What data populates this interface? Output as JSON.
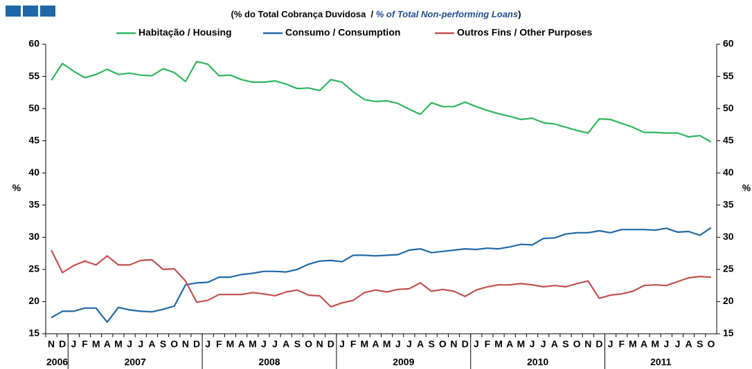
{
  "chart_data": {
    "type": "line",
    "subtitle": [
      "(% do Total Cobrança Duvidosa  / ",
      "% of Total Non-performing Loans",
      ")"
    ],
    "ylabel": "%",
    "y2label": "%",
    "categories": [
      "N",
      "D",
      "J",
      "F",
      "M",
      "A",
      "M",
      "J",
      "J",
      "A",
      "S",
      "O",
      "N",
      "D",
      "J",
      "F",
      "M",
      "A",
      "M",
      "J",
      "J",
      "A",
      "S",
      "O",
      "N",
      "D",
      "J",
      "F",
      "M",
      "A",
      "M",
      "J",
      "J",
      "A",
      "S",
      "O",
      "N",
      "D",
      "J",
      "F",
      "M",
      "A",
      "M",
      "J",
      "J",
      "A",
      "S",
      "O",
      "N",
      "D",
      "J",
      "F",
      "M",
      "A",
      "M",
      "J",
      "J",
      "A",
      "S",
      "O"
    ],
    "years": [
      "2006",
      "2007",
      "2008",
      "2009",
      "2010",
      "2011"
    ],
    "series": [
      {
        "name": "Habitação / Housing",
        "color": "#2db55d",
        "values": [
          54.4,
          57.0,
          55.8,
          54.8,
          55.3,
          56.1,
          55.3,
          55.5,
          55.2,
          55.1,
          56.2,
          55.6,
          54.2,
          57.3,
          56.9,
          55.1,
          55.2,
          54.5,
          54.1,
          54.1,
          54.3,
          53.8,
          53.1,
          53.2,
          52.8,
          54.5,
          54.1,
          52.6,
          51.4,
          51.1,
          51.2,
          50.8,
          49.9,
          49.1,
          50.9,
          50.3,
          50.3,
          51.0,
          50.3,
          49.7,
          49.2,
          48.8,
          48.3,
          48.5,
          47.8,
          47.6,
          47.1,
          46.6,
          46.2,
          48.4,
          48.3,
          47.7,
          47.1,
          46.3,
          46.3,
          46.2,
          46.2,
          45.6,
          45.8,
          44.8
        ]
      },
      {
        "name": "Consumo / Consumption",
        "color": "#1f67a6",
        "values": [
          17.5,
          18.5,
          18.5,
          19.0,
          19.0,
          16.8,
          19.1,
          18.7,
          18.5,
          18.4,
          18.8,
          19.3,
          22.6,
          22.9,
          23.0,
          23.8,
          23.8,
          24.2,
          24.4,
          24.7,
          24.7,
          24.6,
          25.0,
          25.8,
          26.3,
          26.4,
          26.2,
          27.2,
          27.2,
          27.1,
          27.2,
          27.3,
          28.0,
          28.2,
          27.6,
          27.8,
          28.0,
          28.2,
          28.1,
          28.3,
          28.2,
          28.5,
          28.9,
          28.8,
          29.8,
          29.9,
          30.5,
          30.7,
          30.7,
          31.0,
          30.7,
          31.2,
          31.2,
          31.2,
          31.1,
          31.4,
          30.8,
          30.9,
          30.3,
          31.5
        ]
      },
      {
        "name": "Outros Fins / Other Purposes",
        "color": "#c0504d",
        "values": [
          28.0,
          24.5,
          25.6,
          26.3,
          25.7,
          27.1,
          25.7,
          25.7,
          26.4,
          26.5,
          25.0,
          25.1,
          23.2,
          19.9,
          20.2,
          21.1,
          21.1,
          21.1,
          21.4,
          21.2,
          20.9,
          21.5,
          21.8,
          21.0,
          20.9,
          19.2,
          19.8,
          20.2,
          21.4,
          21.8,
          21.5,
          21.9,
          22.0,
          22.9,
          21.6,
          21.9,
          21.6,
          20.8,
          21.8,
          22.3,
          22.6,
          22.6,
          22.8,
          22.6,
          22.3,
          22.5,
          22.3,
          22.8,
          23.2,
          20.5,
          21.0,
          21.2,
          21.6,
          22.5,
          22.6,
          22.5,
          23.1,
          23.7,
          23.9,
          23.8
        ]
      }
    ],
    "ylim": [
      15,
      60
    ],
    "yticks": [
      15,
      20,
      25,
      30,
      35,
      40,
      45,
      50,
      55,
      60
    ],
    "y2lim": [
      15,
      60
    ],
    "y2ticks": [
      15,
      20,
      25,
      30,
      35,
      40,
      45,
      50,
      55,
      60
    ],
    "grid": false
  }
}
